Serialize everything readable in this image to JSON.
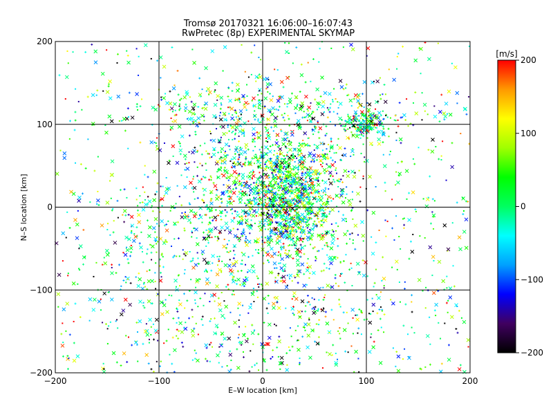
{
  "chart_data": {
    "type": "scatter",
    "title": "Tromsø 20170321 16:06:00–16:07:43",
    "subtitle": "RwPretec (8p) EXPERIMENTAL SKYMAP",
    "xlabel": "E–W location [km]",
    "ylabel": "N–S location [km]",
    "xlim": [
      -200,
      200
    ],
    "ylim": [
      -200,
      200
    ],
    "xticks": [
      -200,
      -100,
      0,
      100,
      200
    ],
    "yticks": [
      -200,
      -100,
      0,
      100,
      200
    ],
    "xtick_labels": [
      "−200",
      "−100",
      "0",
      "100",
      "200"
    ],
    "ytick_labels": [
      "−200",
      "−100",
      "0",
      "100",
      "200"
    ],
    "grid": true,
    "markers": [
      "x",
      "+",
      "dot"
    ],
    "colorbar": {
      "label": "[m/s]",
      "range": [
        -200,
        200
      ],
      "ticks": [
        200,
        100,
        0,
        -100,
        -200
      ],
      "tick_labels": [
        "200",
        "100",
        "0",
        "−100",
        "−200"
      ],
      "colors": [
        "#000000",
        "#400060",
        "#0000ff",
        "#00a0ff",
        "#00ffff",
        "#00ff60",
        "#00ff00",
        "#a0ff00",
        "#ffff00",
        "#ff9900",
        "#ff0000"
      ]
    },
    "clusters": [
      {
        "cx": 25,
        "cy": 5,
        "sx": 22,
        "sy": 30,
        "n": 900
      },
      {
        "cx": 5,
        "cy": 55,
        "sx": 45,
        "sy": 40,
        "n": 600
      },
      {
        "cx": 100,
        "cy": 100,
        "sx": 12,
        "sy": 10,
        "n": 180
      },
      {
        "cx": -20,
        "cy": -20,
        "sx": 60,
        "sy": 45,
        "n": 600
      },
      {
        "cx": 0,
        "cy": 120,
        "sx": 80,
        "sy": 15,
        "n": 300
      },
      {
        "cx": 0,
        "cy": -130,
        "sx": 100,
        "sy": 50,
        "n": 500
      },
      {
        "cx": 0,
        "cy": 0,
        "sx": 200,
        "sy": 200,
        "n": 700
      }
    ]
  }
}
